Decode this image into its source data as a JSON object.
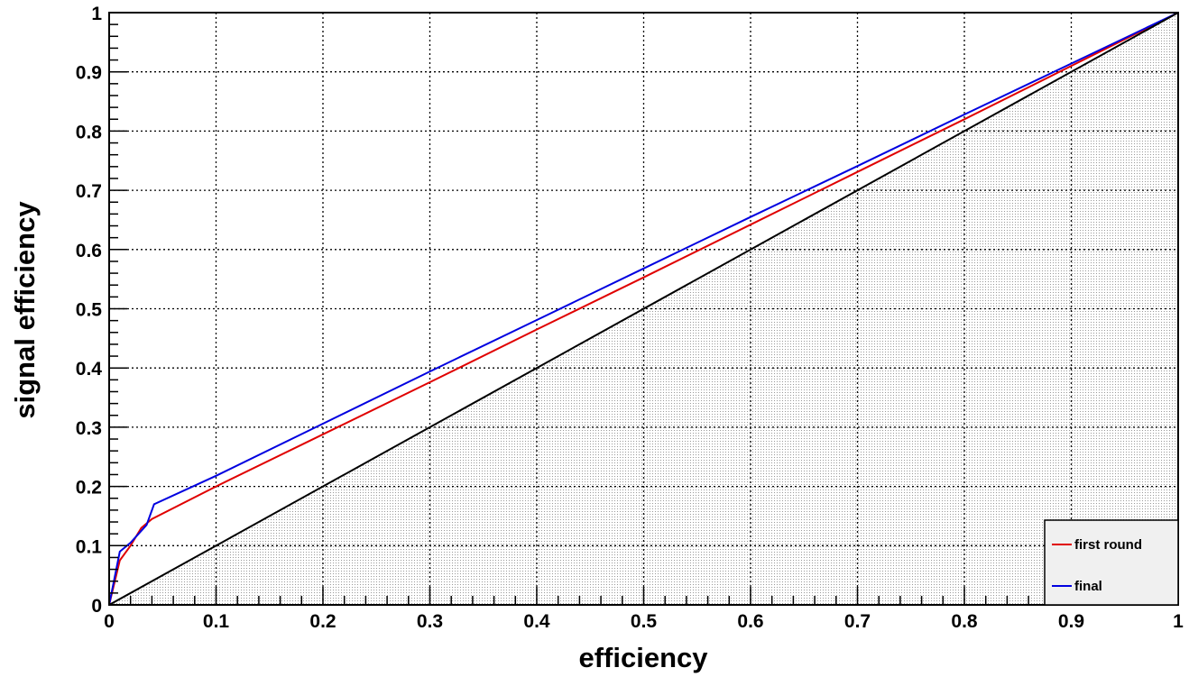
{
  "chart_data": {
    "type": "line",
    "title": "",
    "xlabel": "efficiency",
    "ylabel": "signal efficiency",
    "xlim": [
      0,
      1
    ],
    "ylim": [
      0,
      1
    ],
    "x_ticks": [
      "0",
      "0.1",
      "0.2",
      "0.3",
      "0.4",
      "0.5",
      "0.6",
      "0.7",
      "0.8",
      "0.9",
      "1"
    ],
    "y_ticks": [
      "0",
      "0.1",
      "0.2",
      "0.3",
      "0.4",
      "0.5",
      "0.6",
      "0.7",
      "0.8",
      "0.9",
      "1"
    ],
    "grid": true,
    "legend_position": "bottom-right",
    "series": [
      {
        "name": "first round",
        "color": "#e00000",
        "points": [
          [
            0,
            0
          ],
          [
            0.01,
            0.075
          ],
          [
            0.02,
            0.1
          ],
          [
            0.03,
            0.13
          ],
          [
            0.04,
            0.145
          ],
          [
            0.1,
            0.2
          ],
          [
            0.2,
            0.288
          ],
          [
            0.3,
            0.376
          ],
          [
            0.4,
            0.465
          ],
          [
            0.5,
            0.553
          ],
          [
            0.6,
            0.642
          ],
          [
            0.7,
            0.731
          ],
          [
            0.8,
            0.82
          ],
          [
            0.9,
            0.91
          ],
          [
            1.0,
            1.0
          ]
        ]
      },
      {
        "name": "final",
        "color": "#0000e0",
        "points": [
          [
            0,
            0
          ],
          [
            0.01,
            0.09
          ],
          [
            0.02,
            0.105
          ],
          [
            0.035,
            0.135
          ],
          [
            0.042,
            0.17
          ],
          [
            0.1,
            0.218
          ],
          [
            0.2,
            0.306
          ],
          [
            0.3,
            0.394
          ],
          [
            0.4,
            0.481
          ],
          [
            0.5,
            0.568
          ],
          [
            0.6,
            0.655
          ],
          [
            0.7,
            0.741
          ],
          [
            0.8,
            0.828
          ],
          [
            0.9,
            0.914
          ],
          [
            1.0,
            1.0
          ]
        ]
      },
      {
        "color": "#000000",
        "points": [
          [
            0,
            0
          ],
          [
            1,
            1
          ]
        ]
      }
    ]
  }
}
